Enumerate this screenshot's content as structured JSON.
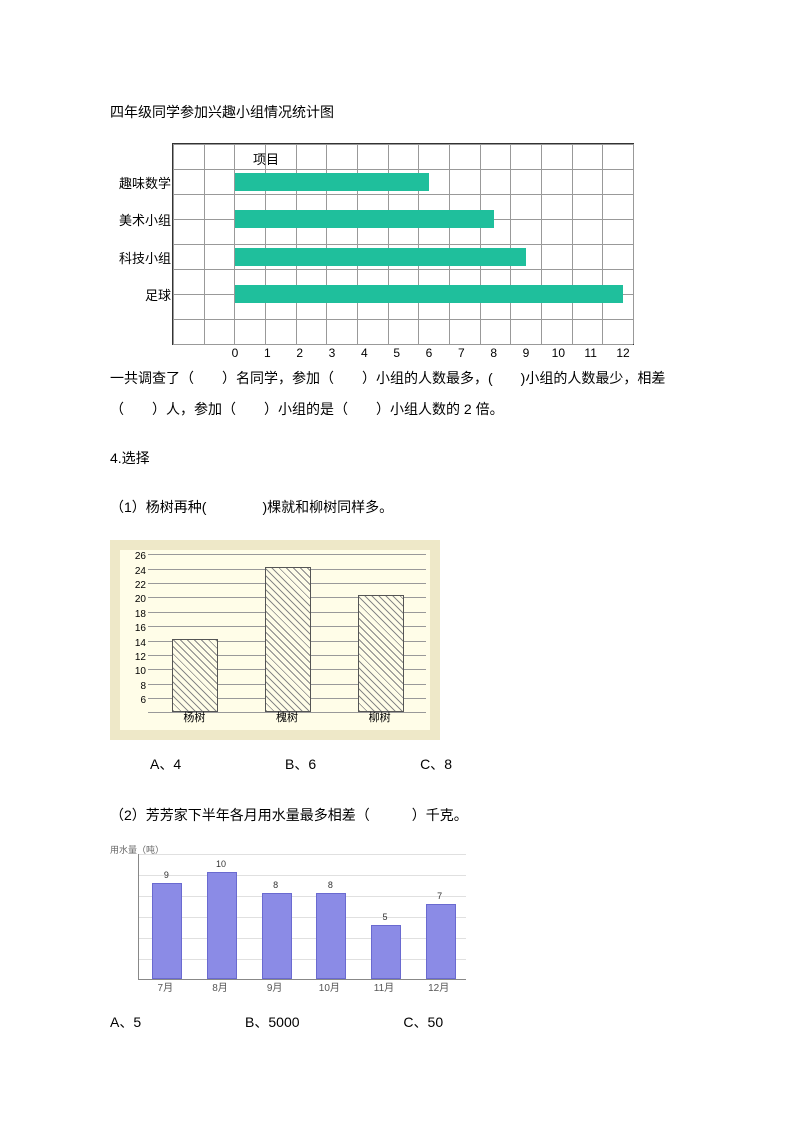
{
  "title": "四年级同学参加兴趣小组情况统计图",
  "chart1": {
    "type": "bar",
    "ylabel": "项目",
    "xmax": 12,
    "xticks": [
      0,
      1,
      2,
      3,
      4,
      5,
      6,
      7,
      8,
      9,
      10,
      11,
      12
    ],
    "bar_color": "#1fbf9c",
    "categories": [
      "趣味数学",
      "美术小组",
      "科技小组",
      "足球"
    ],
    "values": [
      6,
      8,
      9,
      12
    ],
    "grid_cols": 15,
    "grid_rows": 8
  },
  "fill_text": "一共调查了（　　）名同学，参加（　　）小组的人数最多，(　　)小组的人数最少，相差（　　）人，参加（　　）小组的是（　　）小组人数的 2 倍。",
  "q4": "4.选择",
  "q4_1": "（1）杨树再种(　　　　)棵就和柳树同样多。",
  "chart2": {
    "type": "bar",
    "bg": "#eee8c8",
    "plot_bg": "#fffde8",
    "categories": [
      "杨树",
      "槐树",
      "柳树"
    ],
    "values": [
      14,
      24,
      20
    ],
    "yticks": [
      6,
      8,
      10,
      12,
      14,
      16,
      18,
      20,
      22,
      24,
      26
    ],
    "ymax": 26
  },
  "q4_1_options": {
    "A": "4",
    "B": "6",
    "C": "8"
  },
  "q4_2": "（2）芳芳家下半年各月用水量最多相差（　　　）千克。",
  "chart3": {
    "type": "bar",
    "top_label": "用水量（吨）",
    "categories": [
      "7月",
      "8月",
      "9月",
      "10月",
      "11月",
      "12月"
    ],
    "values": [
      9,
      10,
      8,
      8,
      5,
      7
    ],
    "ymax": 12,
    "bar_color": "#8b8be6",
    "hlines": [
      2,
      4,
      6,
      8,
      10,
      12
    ]
  },
  "q4_2_options": {
    "A": "5",
    "B": "5000",
    "C": "50"
  }
}
